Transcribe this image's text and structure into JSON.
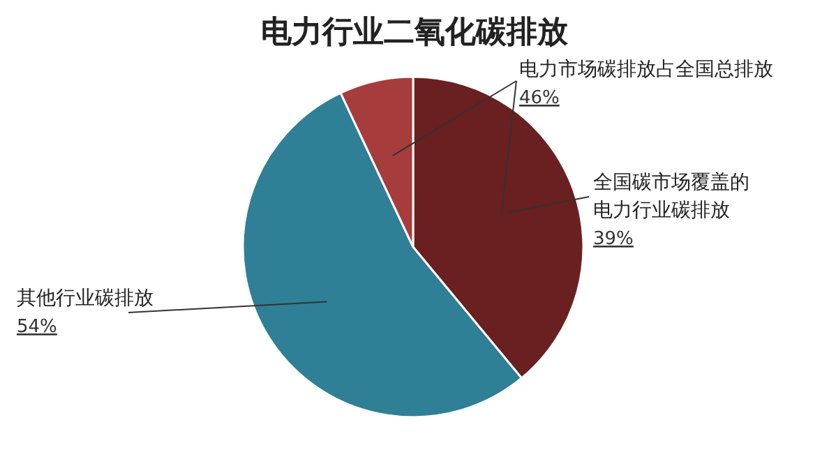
{
  "chart_data": {
    "type": "pie",
    "title": "电力行业二氧化碳排放",
    "categories": [
      "全国碳市场覆盖的电力行业碳排放",
      "其他行业碳排放",
      null
    ],
    "values": [
      39,
      54,
      7
    ],
    "colors": [
      "#6a2020",
      "#2f7f96",
      "#a63c3c"
    ],
    "value_labels": [
      "39%",
      "54%",
      null
    ],
    "annotations": [
      "电力市场碳排放占全国总排放 46%"
    ]
  }
}
